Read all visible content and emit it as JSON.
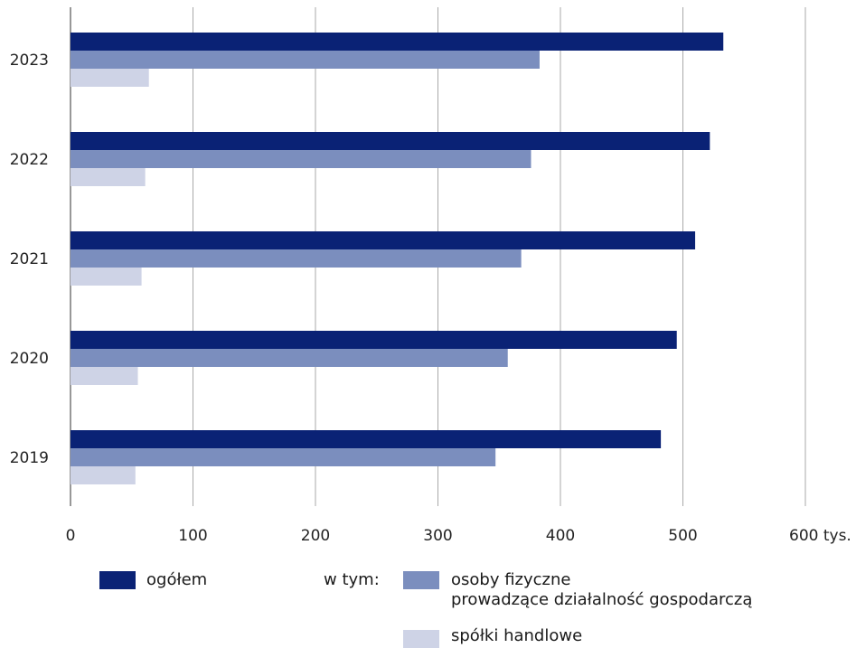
{
  "chart_data": {
    "type": "bar",
    "orientation": "horizontal",
    "categories": [
      "2023",
      "2022",
      "2021",
      "2020",
      "2019"
    ],
    "series": [
      {
        "name": "ogółem",
        "color": "#0a2275",
        "values": [
          533,
          522,
          510,
          495,
          482
        ]
      },
      {
        "name": "osoby fizyczne prowadzące działalność gospodarczą",
        "color": "#7b8ebe",
        "values": [
          383,
          376,
          368,
          357,
          347
        ]
      },
      {
        "name": "spółki handlowe",
        "color": "#ced3e6",
        "values": [
          64,
          61,
          58,
          55,
          53
        ]
      }
    ],
    "x_ticks": [
      "0",
      "100",
      "200",
      "300",
      "400",
      "500",
      "600 tys."
    ],
    "xlim": [
      0,
      600
    ],
    "grid": "vertical",
    "legend": {
      "position": "bottom",
      "total_label": "ogółem",
      "prefix": "w tym:",
      "individuals_label_line1": "osoby fizyczne",
      "individuals_label_line2": "prowadzące działalność gospodarczą",
      "companies_label": "spółki handlowe"
    }
  }
}
